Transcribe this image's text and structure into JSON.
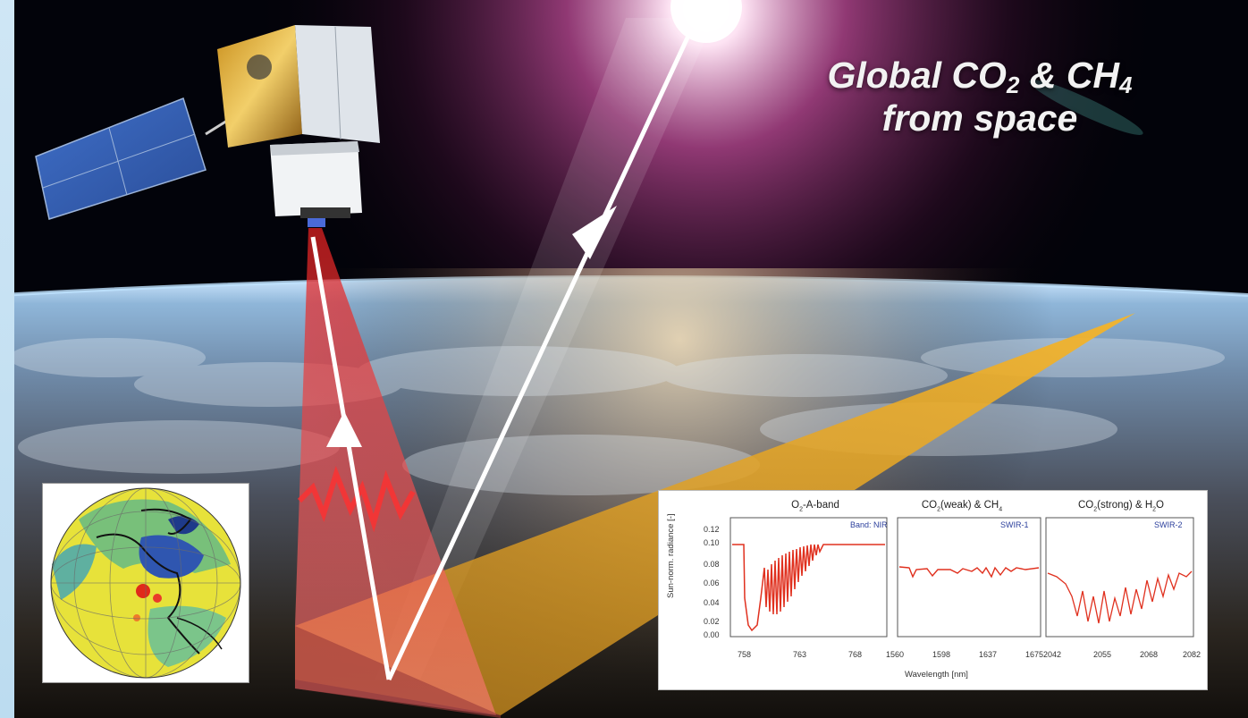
{
  "headline": {
    "line1_prefix": "Global CO",
    "line1_sub1": "2",
    "line1_mid": " & CH",
    "line1_sub2": "4",
    "line2": "from space"
  },
  "colors": {
    "space": "#000000",
    "sun_glow": "#f3a6d8",
    "swath": "#e8a623",
    "beam": "#e23a3a",
    "spectrum_line": "#e0301e",
    "band_tag": "#2b3f9c"
  },
  "spectra": {
    "ylabel": "Sun-norm. radiance [-]",
    "xlabel": "Wavelength [nm]",
    "yticks": [
      "0.12",
      "0.10",
      "0.08",
      "0.06",
      "0.04",
      "0.02",
      "0.00"
    ],
    "panels": [
      {
        "title_prefix": "O",
        "title_sub": "2",
        "title_suffix": "-A-band",
        "tag": "Band: NIR",
        "xticks": [
          "758",
          "763",
          "768"
        ]
      },
      {
        "title_prefix": "CO",
        "title_sub": "2",
        "title_suffix": "(weak) & CH",
        "title_sub2": "4",
        "tag": "SWIR-1",
        "xticks": [
          "1560",
          "1598",
          "1637",
          "1675"
        ]
      },
      {
        "title_prefix": "CO",
        "title_sub": "2",
        "title_suffix": "(strong) & H",
        "title_sub2": "2",
        "title_suffix2": "O",
        "tag": "SWIR-2",
        "xticks": [
          "2042",
          "2055",
          "2068",
          "2082"
        ]
      }
    ]
  }
}
